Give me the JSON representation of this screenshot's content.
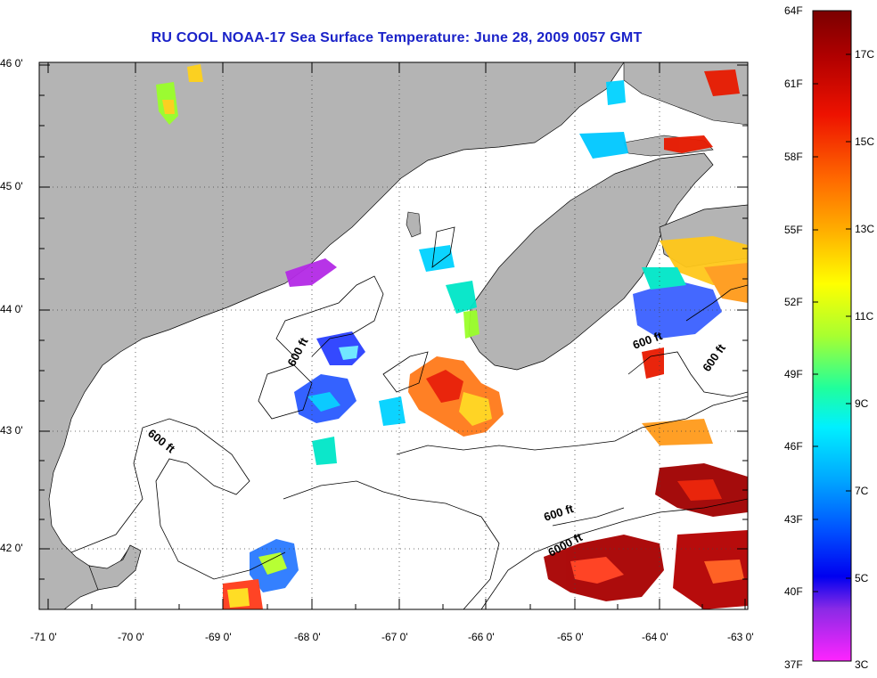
{
  "title": "RU COOL  NOAA-17  Sea Surface Temperature:  June 28, 2009 0057 GMT",
  "map": {
    "lat_labels": [
      "46 0'",
      "45 0'",
      "44 0'",
      "43 0'",
      "42 0'"
    ],
    "lon_labels": [
      "-71 0'",
      "-70 0'",
      "-69 0'",
      "-68 0'",
      "-67 0'",
      "-66 0'",
      "-65 0'",
      "-64 0'",
      "-63 0'"
    ],
    "lat_range": [
      41.5,
      46.0
    ],
    "lon_range": [
      -71.0,
      -63.0
    ],
    "grid": "dotted",
    "contour_labels": [
      "600 ft",
      "600 ft",
      "600 ft",
      "600 ft",
      "600 ft",
      "6000 ft"
    ],
    "colors": {
      "land": "#b4b4b4",
      "no_data": "#ffffff",
      "title": "#1a22c8"
    }
  },
  "colorbar": {
    "fahrenheit_labels": [
      "64F",
      "61F",
      "58F",
      "55F",
      "52F",
      "49F",
      "46F",
      "43F",
      "40F",
      "37F"
    ],
    "celsius_labels": [
      "17C",
      "15C",
      "13C",
      "11C",
      "9C",
      "7C",
      "5C",
      "3C"
    ],
    "range_c": [
      3,
      18
    ],
    "gradient": [
      "#8b0000",
      "#d40000",
      "#ff2a00",
      "#ff7a00",
      "#ffc800",
      "#ffff00",
      "#b4ff2a",
      "#2aff9a",
      "#00e6ff",
      "#0096ff",
      "#0032ff",
      "#0000ff",
      "#8a2ae6",
      "#ff22ff"
    ]
  }
}
